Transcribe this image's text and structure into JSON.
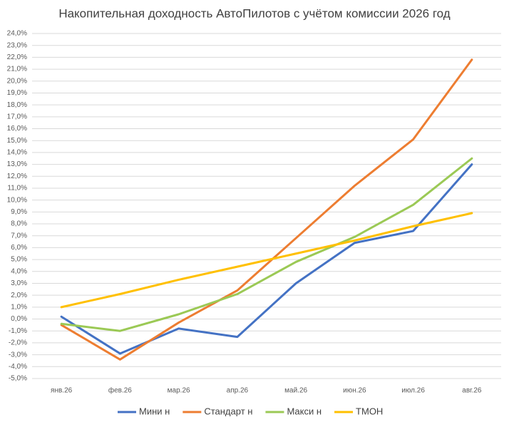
{
  "chart_data": {
    "type": "line",
    "title": "Накопительная доходность АвтоПилотов с учётом комиссии 2026 год",
    "categories": [
      "янв.26",
      "фев.26",
      "мар.26",
      "апр.26",
      "май.26",
      "июн.26",
      "июл.26",
      "авг.26"
    ],
    "series": [
      {
        "name": "Мини н",
        "color": "#4472c4",
        "values": [
          0.2,
          -2.9,
          -0.8,
          -1.5,
          3.0,
          6.4,
          7.4,
          13.0
        ]
      },
      {
        "name": "Стандарт н",
        "color": "#ed7d31",
        "values": [
          -0.5,
          -3.4,
          -0.3,
          2.4,
          6.8,
          11.2,
          15.1,
          21.8
        ]
      },
      {
        "name": "Макси н",
        "color": "#9bc955",
        "values": [
          -0.4,
          -1.0,
          0.4,
          2.1,
          4.8,
          6.9,
          9.6,
          13.5
        ]
      },
      {
        "name": "ТМОН",
        "color": "#ffc000",
        "values": [
          1.0,
          2.1,
          3.3,
          4.4,
          5.5,
          6.6,
          7.8,
          8.9
        ]
      }
    ],
    "ylim": [
      -5,
      24
    ],
    "yticks": [
      {
        "value": -5,
        "label": "-5,0%"
      },
      {
        "value": -4,
        "label": "-4,0%"
      },
      {
        "value": -3,
        "label": "-3,0%"
      },
      {
        "value": -2,
        "label": "-2,0%"
      },
      {
        "value": -1,
        "label": "-1,0%"
      },
      {
        "value": 0,
        "label": "0,0%"
      },
      {
        "value": 1,
        "label": "1,0%"
      },
      {
        "value": 2,
        "label": "2,0%"
      },
      {
        "value": 3,
        "label": "3,0%"
      },
      {
        "value": 4,
        "label": "4,0%"
      },
      {
        "value": 5,
        "label": "5,0%"
      },
      {
        "value": 6,
        "label": "6,0%"
      },
      {
        "value": 7,
        "label": "7,0%"
      },
      {
        "value": 8,
        "label": "8,0%"
      },
      {
        "value": 9,
        "label": "9,0%"
      },
      {
        "value": 10,
        "label": "10,0%"
      },
      {
        "value": 11,
        "label": "11,0%"
      },
      {
        "value": 12,
        "label": "12,0%"
      },
      {
        "value": 13,
        "label": "13,0%"
      },
      {
        "value": 14,
        "label": "14,0%"
      },
      {
        "value": 15,
        "label": "15,0%"
      },
      {
        "value": 16,
        "label": "16,0%"
      },
      {
        "value": 17,
        "label": "17,0%"
      },
      {
        "value": 18,
        "label": "18,0%"
      },
      {
        "value": 19,
        "label": "19,0%"
      },
      {
        "value": 20,
        "label": "20,0%"
      },
      {
        "value": 21,
        "label": "21,0%"
      },
      {
        "value": 22,
        "label": "22,0%"
      },
      {
        "value": 23,
        "label": "23,0%"
      },
      {
        "value": 24,
        "label": "24,0%"
      }
    ],
    "grid": true,
    "legend": "bottom"
  }
}
